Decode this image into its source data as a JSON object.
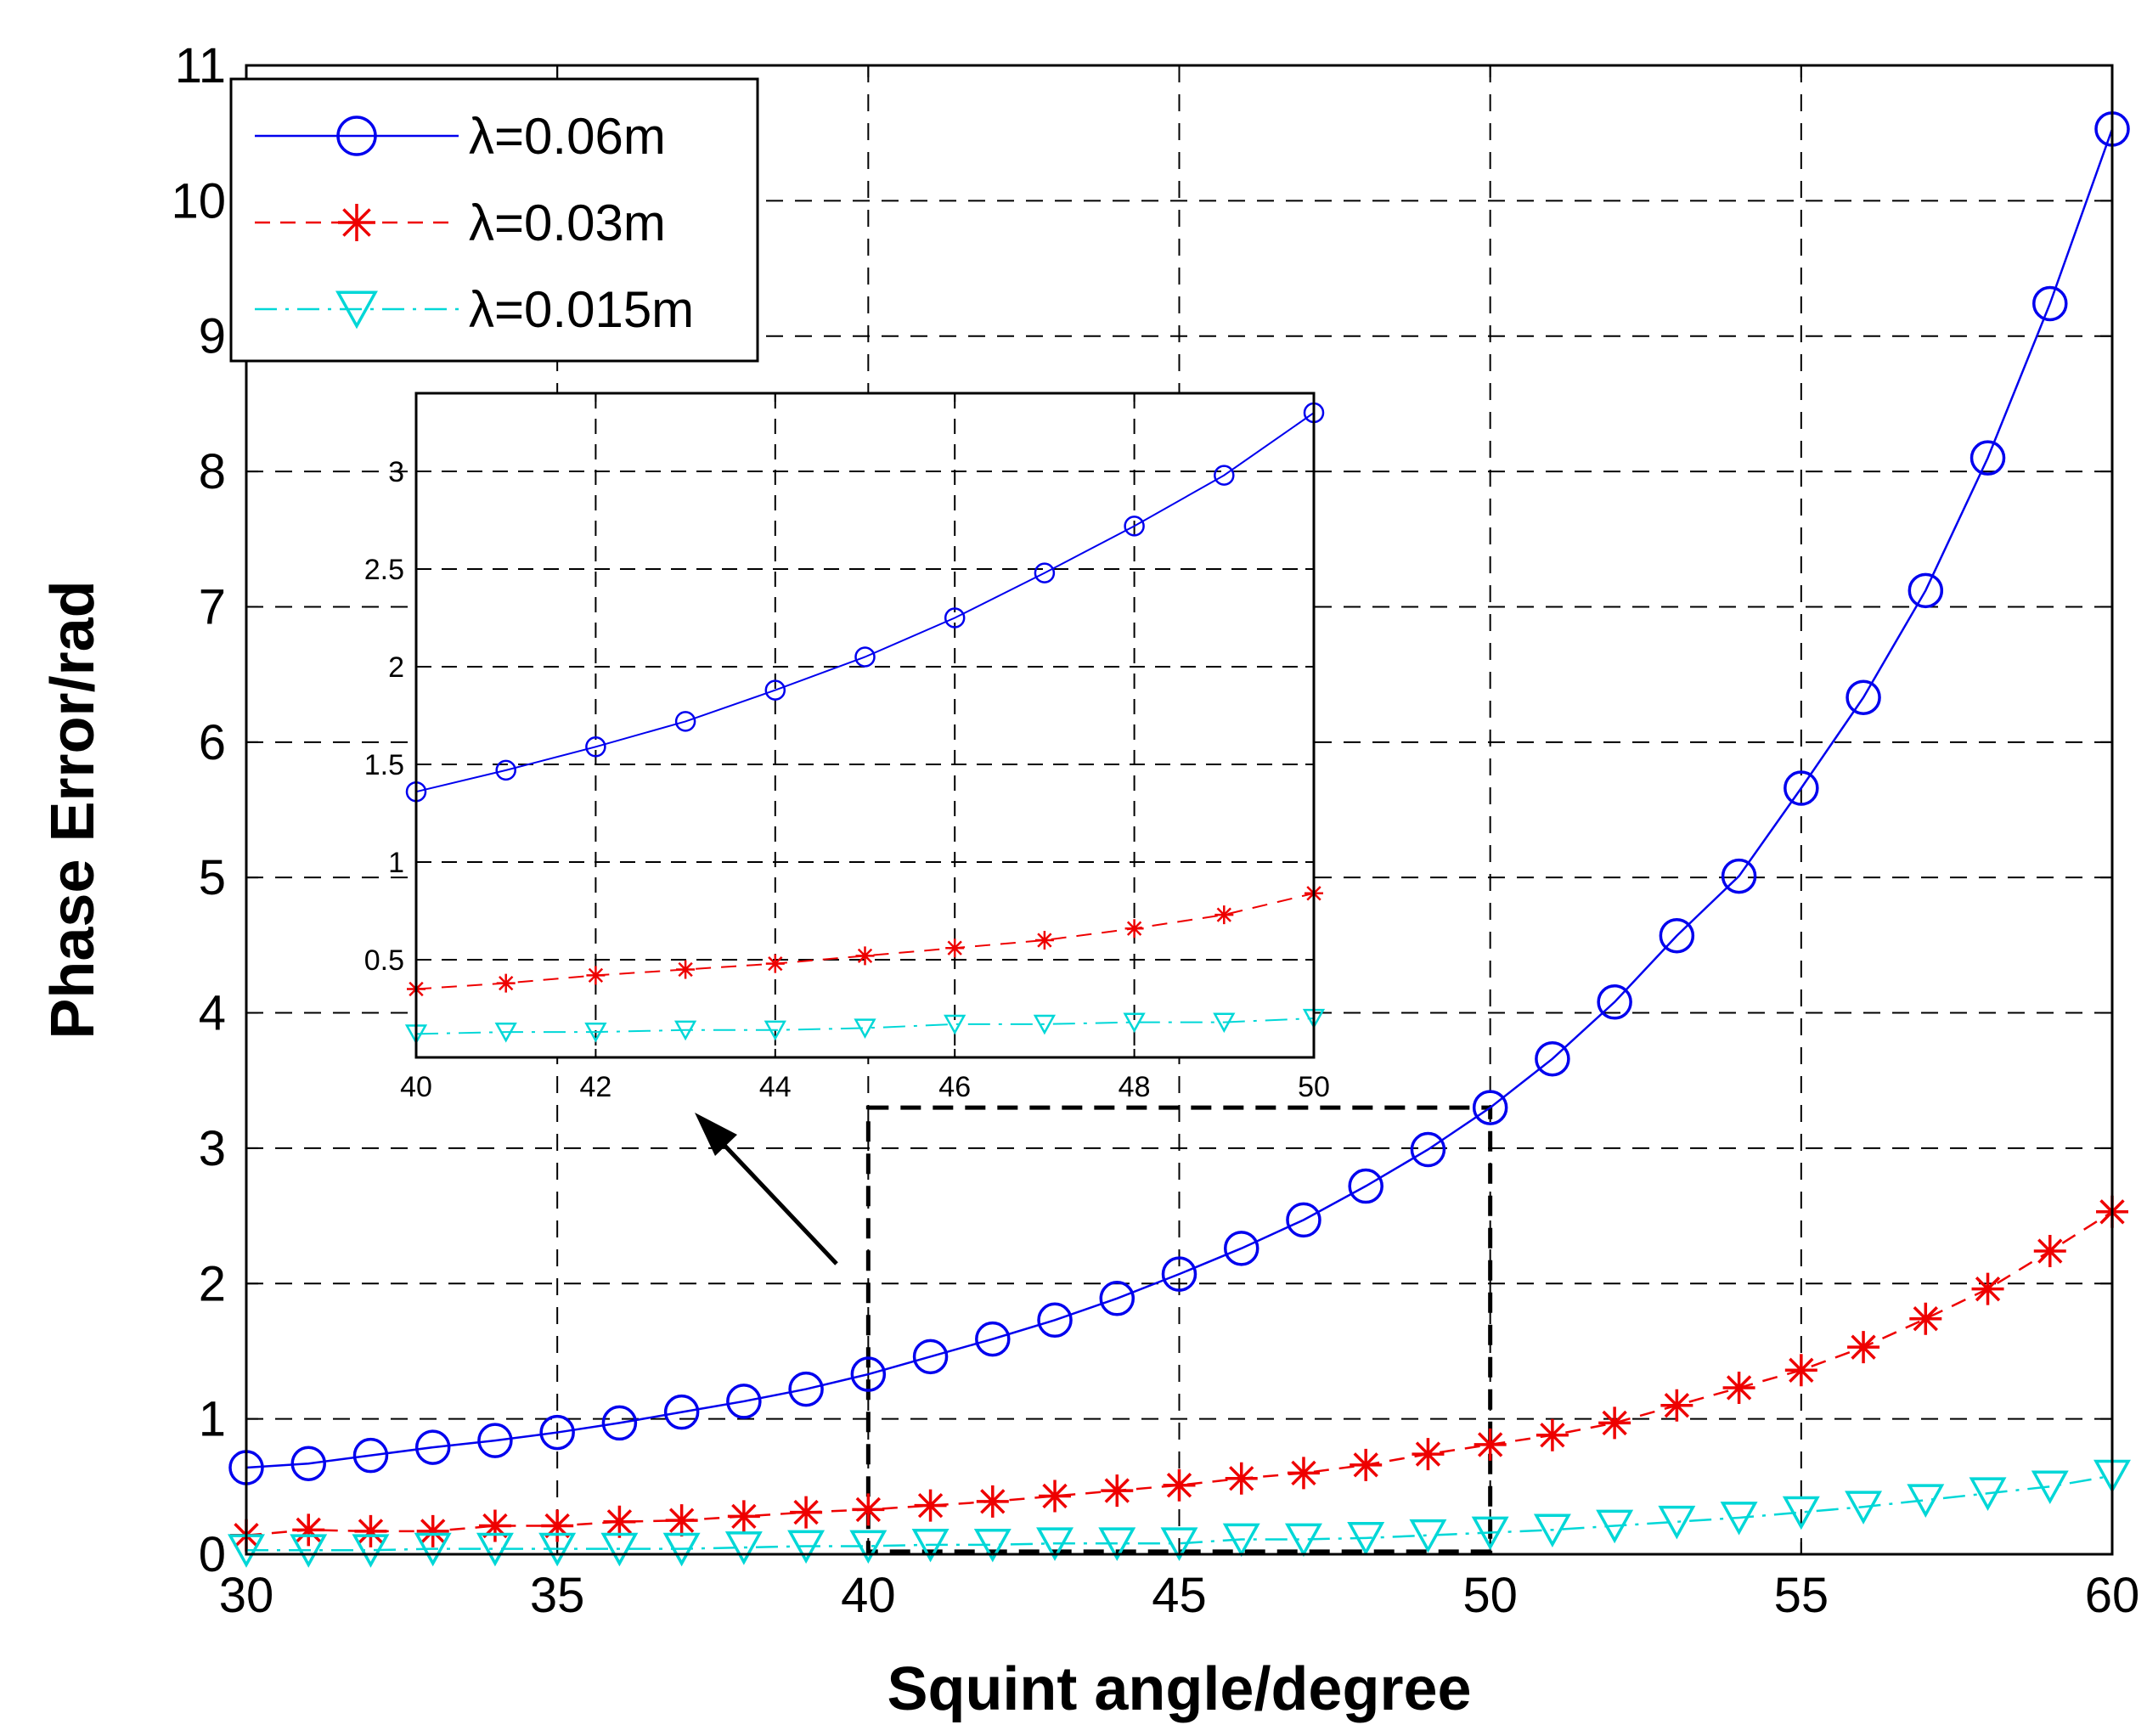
{
  "chart_data": [
    {
      "type": "line",
      "xlabel": "Squint angle/degree",
      "ylabel": "Phase Error/rad",
      "xlim": [
        30,
        60
      ],
      "ylim": [
        0,
        11
      ],
      "xticks": [
        30,
        35,
        40,
        45,
        50,
        55,
        60
      ],
      "yticks": [
        0,
        1,
        2,
        3,
        4,
        5,
        6,
        7,
        8,
        9,
        10,
        11
      ],
      "grid": true,
      "legend_position": "top-left",
      "x": [
        30,
        31,
        32,
        33,
        34,
        35,
        36,
        37,
        38,
        39,
        40,
        41,
        42,
        43,
        44,
        45,
        46,
        47,
        48,
        49,
        50,
        51,
        52,
        53,
        54,
        55,
        56,
        57,
        58,
        59,
        60
      ],
      "series": [
        {
          "name": "λ=0.06m",
          "color": "#0000ee",
          "line_style": "solid",
          "marker": "circle",
          "values": [
            0.64,
            0.67,
            0.73,
            0.79,
            0.84,
            0.9,
            0.97,
            1.05,
            1.13,
            1.22,
            1.33,
            1.46,
            1.59,
            1.73,
            1.89,
            2.07,
            2.26,
            2.47,
            2.72,
            2.99,
            3.3,
            3.66,
            4.08,
            4.57,
            5.01,
            5.66,
            6.33,
            7.12,
            8.1,
            9.24,
            10.53
          ]
        },
        {
          "name": "λ=0.03m",
          "color": "#ee0000",
          "line_style": "dashed",
          "marker": "asterisk",
          "values": [
            0.14,
            0.18,
            0.17,
            0.17,
            0.21,
            0.21,
            0.24,
            0.25,
            0.28,
            0.31,
            0.33,
            0.36,
            0.39,
            0.43,
            0.47,
            0.51,
            0.56,
            0.6,
            0.66,
            0.74,
            0.81,
            0.88,
            0.97,
            1.1,
            1.23,
            1.36,
            1.53,
            1.74,
            1.96,
            2.24,
            2.53
          ]
        },
        {
          "name": "λ=0.015m",
          "color": "#00d7d7",
          "line_style": "dashdot",
          "marker": "triangle-down",
          "values": [
            0.03,
            0.03,
            0.03,
            0.04,
            0.04,
            0.04,
            0.04,
            0.04,
            0.05,
            0.06,
            0.06,
            0.07,
            0.07,
            0.08,
            0.08,
            0.08,
            0.11,
            0.11,
            0.12,
            0.14,
            0.16,
            0.18,
            0.21,
            0.24,
            0.27,
            0.31,
            0.35,
            0.4,
            0.45,
            0.5,
            0.58
          ]
        }
      ]
    },
    {
      "type": "line",
      "xlim": [
        40,
        50
      ],
      "ylim": [
        0,
        3.4
      ],
      "xticks": [
        40,
        42,
        44,
        46,
        48,
        50
      ],
      "yticks": [
        0.5,
        1,
        1.5,
        2,
        2.5,
        3
      ],
      "grid": true,
      "x": [
        40,
        41,
        42,
        43,
        44,
        45,
        46,
        47,
        48,
        49,
        50
      ],
      "series": [
        {
          "color": "#0000ee",
          "line_style": "solid",
          "marker": "circle",
          "values": [
            1.36,
            1.47,
            1.59,
            1.72,
            1.88,
            2.05,
            2.25,
            2.48,
            2.72,
            2.98,
            3.3
          ]
        },
        {
          "color": "#ee0000",
          "line_style": "dashed",
          "marker": "asterisk",
          "values": [
            0.35,
            0.38,
            0.42,
            0.45,
            0.48,
            0.52,
            0.56,
            0.6,
            0.66,
            0.73,
            0.84
          ]
        },
        {
          "color": "#00d7d7",
          "line_style": "dashdot",
          "marker": "triangle-down",
          "values": [
            0.12,
            0.13,
            0.13,
            0.14,
            0.14,
            0.15,
            0.17,
            0.17,
            0.18,
            0.18,
            0.2
          ]
        }
      ]
    }
  ]
}
